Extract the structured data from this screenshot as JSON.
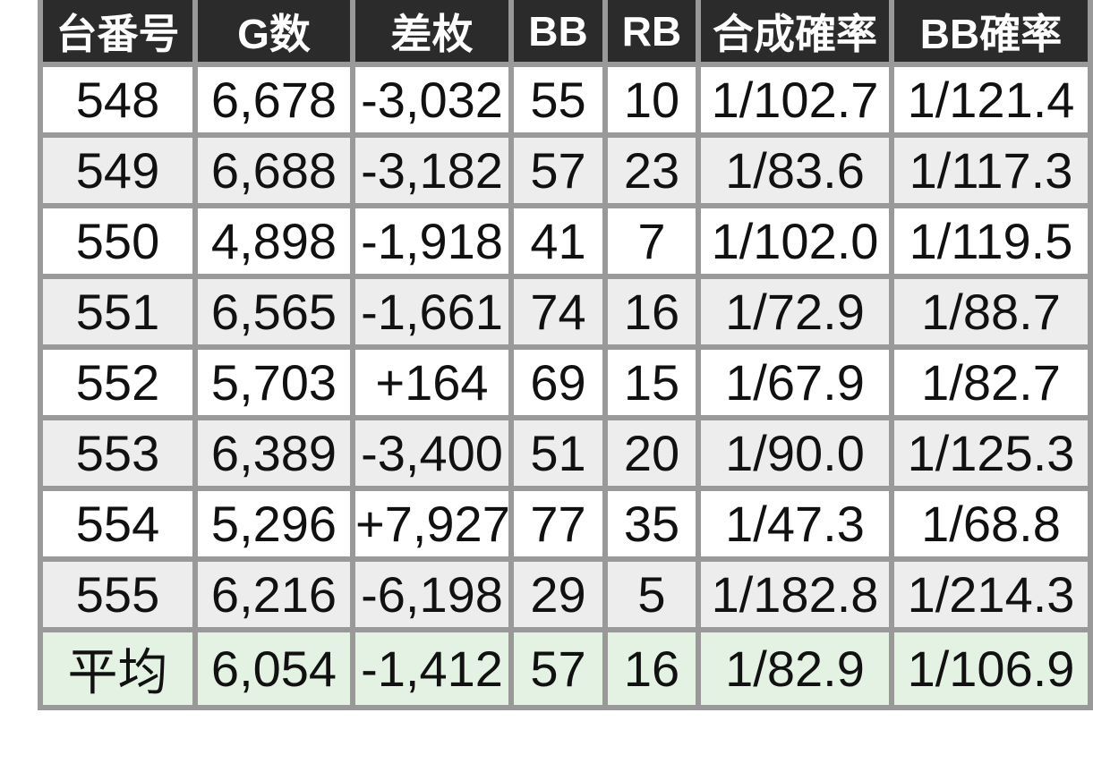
{
  "table": {
    "columns": [
      {
        "key": "machine-no",
        "label": "台番号"
      },
      {
        "key": "games",
        "label": "G数"
      },
      {
        "key": "diff-medals",
        "label": "差枚"
      },
      {
        "key": "bb",
        "label": "BB"
      },
      {
        "key": "rb",
        "label": "RB"
      },
      {
        "key": "combined-rate",
        "label": "合成確率"
      },
      {
        "key": "bb-rate",
        "label": "BB確率"
      }
    ],
    "rows": [
      {
        "id": "row-548",
        "type": "data",
        "cells": [
          "548",
          "6,678",
          "-3,032",
          "55",
          "10",
          "1/102.7",
          "1/121.4"
        ]
      },
      {
        "id": "row-549",
        "type": "data",
        "cells": [
          "549",
          "6,688",
          "-3,182",
          "57",
          "23",
          "1/83.6",
          "1/117.3"
        ]
      },
      {
        "id": "row-550",
        "type": "data",
        "cells": [
          "550",
          "4,898",
          "-1,918",
          "41",
          "7",
          "1/102.0",
          "1/119.5"
        ]
      },
      {
        "id": "row-551",
        "type": "data",
        "cells": [
          "551",
          "6,565",
          "-1,661",
          "74",
          "16",
          "1/72.9",
          "1/88.7"
        ]
      },
      {
        "id": "row-552",
        "type": "data",
        "cells": [
          "552",
          "5,703",
          "+164",
          "69",
          "15",
          "1/67.9",
          "1/82.7"
        ]
      },
      {
        "id": "row-553",
        "type": "data",
        "cells": [
          "553",
          "6,389",
          "-3,400",
          "51",
          "20",
          "1/90.0",
          "1/125.3"
        ]
      },
      {
        "id": "row-554",
        "type": "data",
        "cells": [
          "554",
          "5,296",
          "+7,927",
          "77",
          "35",
          "1/47.3",
          "1/68.8"
        ]
      },
      {
        "id": "row-555",
        "type": "data",
        "cells": [
          "555",
          "6,216",
          "-6,198",
          "29",
          "5",
          "1/182.8",
          "1/214.3"
        ]
      },
      {
        "id": "row-average",
        "type": "average",
        "cells": [
          "平均",
          "6,054",
          "-1,412",
          "57",
          "16",
          "1/82.9",
          "1/106.9"
        ]
      }
    ],
    "colors": {
      "header_bg": "#2b2b2b",
      "header_fg": "#ffffff",
      "border": "#999999",
      "zebra_row_bg": "#ededed",
      "average_row_bg": "#e3f2e2"
    }
  }
}
